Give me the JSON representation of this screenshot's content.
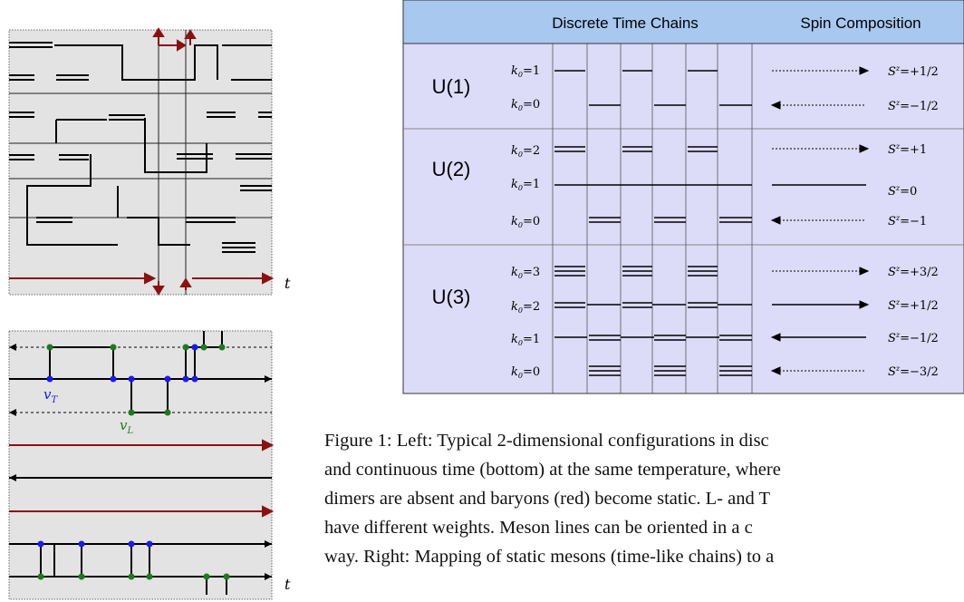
{
  "figures": {
    "top_left": {
      "axis_label": "t"
    },
    "bottom_left": {
      "axis_label": "t",
      "label_vT": "v",
      "label_vT_sub": "T",
      "label_vL": "v",
      "label_vL_sub": "L"
    }
  },
  "table": {
    "headers": {
      "col1": "Discrete Time Chains",
      "col2": "Spin Composition"
    },
    "groups": [
      {
        "name": "U(1)",
        "rows": [
          {
            "k": "k",
            "k_sub": "0",
            "k_val": "=1",
            "s": "S",
            "s_sup": "z",
            "s_val": "=+1/2"
          },
          {
            "k": "k",
            "k_sub": "0",
            "k_val": "=0",
            "s": "S",
            "s_sup": "z",
            "s_val": "=−1/2"
          }
        ]
      },
      {
        "name": "U(2)",
        "rows": [
          {
            "k": "k",
            "k_sub": "0",
            "k_val": "=2",
            "s": "S",
            "s_sup": "z",
            "s_val": "=+1"
          },
          {
            "k": "k",
            "k_sub": "0",
            "k_val": "=1",
            "s": "S",
            "s_sup": "z",
            "s_val": "=0"
          },
          {
            "k": "k",
            "k_sub": "0",
            "k_val": "=0",
            "s": "S",
            "s_sup": "z",
            "s_val": "=−1"
          }
        ]
      },
      {
        "name": "U(3)",
        "rows": [
          {
            "k": "k",
            "k_sub": "0",
            "k_val": "=3",
            "s": "S",
            "s_sup": "z",
            "s_val": "=+3/2"
          },
          {
            "k": "k",
            "k_sub": "0",
            "k_val": "=2",
            "s": "S",
            "s_sup": "z",
            "s_val": "=+1/2"
          },
          {
            "k": "k",
            "k_sub": "0",
            "k_val": "=1",
            "s": "S",
            "s_sup": "z",
            "s_val": "=−1/2"
          },
          {
            "k": "k",
            "k_sub": "0",
            "k_val": "=0",
            "s": "S",
            "s_sup": "z",
            "s_val": "=−3/2"
          }
        ]
      }
    ]
  },
  "caption": {
    "lines": [
      "Figure 1: Left: Typical 2-dimensional configurations in disc",
      "and continuous time (bottom) at the same temperature, where",
      "dimers are absent and baryons (red) become static.  L- and T",
      "have different weights.  Meson lines can be oriented in a c",
      "way. Right: Mapping of static mesons (time-like chains) to a"
    ]
  },
  "colors": {
    "baryon": "#8b1111",
    "vertex_blue": "#1a1aee",
    "vertex_green": "#1d7a1d",
    "table_bg": "#dcdcf8",
    "header_bg": "#a8c8f0",
    "panel_bg": "#e3e3e3"
  }
}
